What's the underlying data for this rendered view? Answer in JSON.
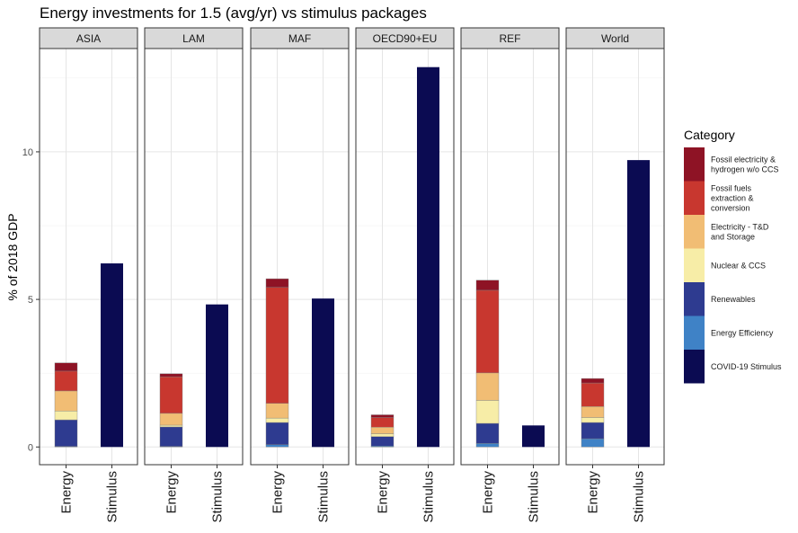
{
  "chart_data": {
    "type": "bar",
    "stacked": true,
    "faceted": true,
    "title": "Energy investments for 1.5 (avg/yr) vs stimulus packages",
    "ylabel": "% of 2018 GDP",
    "xlabel": "",
    "ylim": [
      -0.6,
      13.5
    ],
    "yticks": [
      0,
      5,
      10
    ],
    "grid": true,
    "categories": [
      "Energy",
      "Stimulus"
    ],
    "facets": [
      "ASIA",
      "LAM",
      "MAF",
      "OECD90+EU",
      "REF",
      "World"
    ],
    "legend": {
      "title": "Category",
      "position": "right",
      "entries": [
        {
          "key": "fossil_elec",
          "lines": [
            "Fossil electricity &",
            "hydrogen w/o CCS"
          ],
          "color": "#8E1325"
        },
        {
          "key": "fossil_fuels",
          "lines": [
            "Fossil fuels",
            "extraction &",
            "conversion"
          ],
          "color": "#C8372F"
        },
        {
          "key": "electricity_td",
          "lines": [
            "Electricity - T&D",
            "and Storage"
          ],
          "color": "#F1BD74"
        },
        {
          "key": "nuclear_ccs",
          "lines": [
            "Nuclear & CCS"
          ],
          "color": "#F7EDA7"
        },
        {
          "key": "renewables",
          "lines": [
            "Renewables"
          ],
          "color": "#2E3B90"
        },
        {
          "key": "efficiency",
          "lines": [
            "Energy Efficiency"
          ],
          "color": "#3F82C6"
        },
        {
          "key": "covid",
          "lines": [
            "COVID-19 Stimulus"
          ],
          "color": "#0B0B52"
        }
      ]
    },
    "stack_order": [
      "efficiency",
      "renewables",
      "nuclear_ccs",
      "electricity_td",
      "fossil_fuels",
      "fossil_elec"
    ],
    "series": [
      {
        "name": "Energy Efficiency",
        "key": "efficiency",
        "values": {
          "ASIA": 0.02,
          "LAM": 0.02,
          "MAF": 0.08,
          "OECD90+EU": 0.03,
          "REF": 0.12,
          "World": 0.28
        }
      },
      {
        "name": "Renewables",
        "key": "renewables",
        "values": {
          "ASIA": 0.9,
          "LAM": 0.66,
          "MAF": 0.75,
          "OECD90+EU": 0.32,
          "REF": 0.68,
          "World": 0.55
        }
      },
      {
        "name": "Nuclear & CCS",
        "key": "nuclear_ccs",
        "values": {
          "ASIA": 0.3,
          "LAM": 0.06,
          "MAF": 0.15,
          "OECD90+EU": 0.1,
          "REF": 0.78,
          "World": 0.17
        }
      },
      {
        "name": "Electricity - T&D and Storage",
        "key": "electricity_td",
        "values": {
          "ASIA": 0.68,
          "LAM": 0.4,
          "MAF": 0.5,
          "OECD90+EU": 0.22,
          "REF": 0.93,
          "World": 0.37
        }
      },
      {
        "name": "Fossil fuels extraction & conversion",
        "key": "fossil_fuels",
        "values": {
          "ASIA": 0.67,
          "LAM": 1.24,
          "MAF": 3.93,
          "OECD90+EU": 0.33,
          "REF": 2.8,
          "World": 0.8
        }
      },
      {
        "name": "Fossil electricity & hydrogen w/o CCS",
        "key": "fossil_elec",
        "values": {
          "ASIA": 0.28,
          "LAM": 0.1,
          "MAF": 0.29,
          "OECD90+EU": 0.09,
          "REF": 0.34,
          "World": 0.15
        }
      },
      {
        "name": "COVID-19 Stimulus",
        "key": "covid",
        "values": {
          "ASIA": 6.22,
          "LAM": 4.83,
          "MAF": 5.03,
          "OECD90+EU": 12.87,
          "REF": 0.73,
          "World": 9.72
        }
      }
    ]
  }
}
